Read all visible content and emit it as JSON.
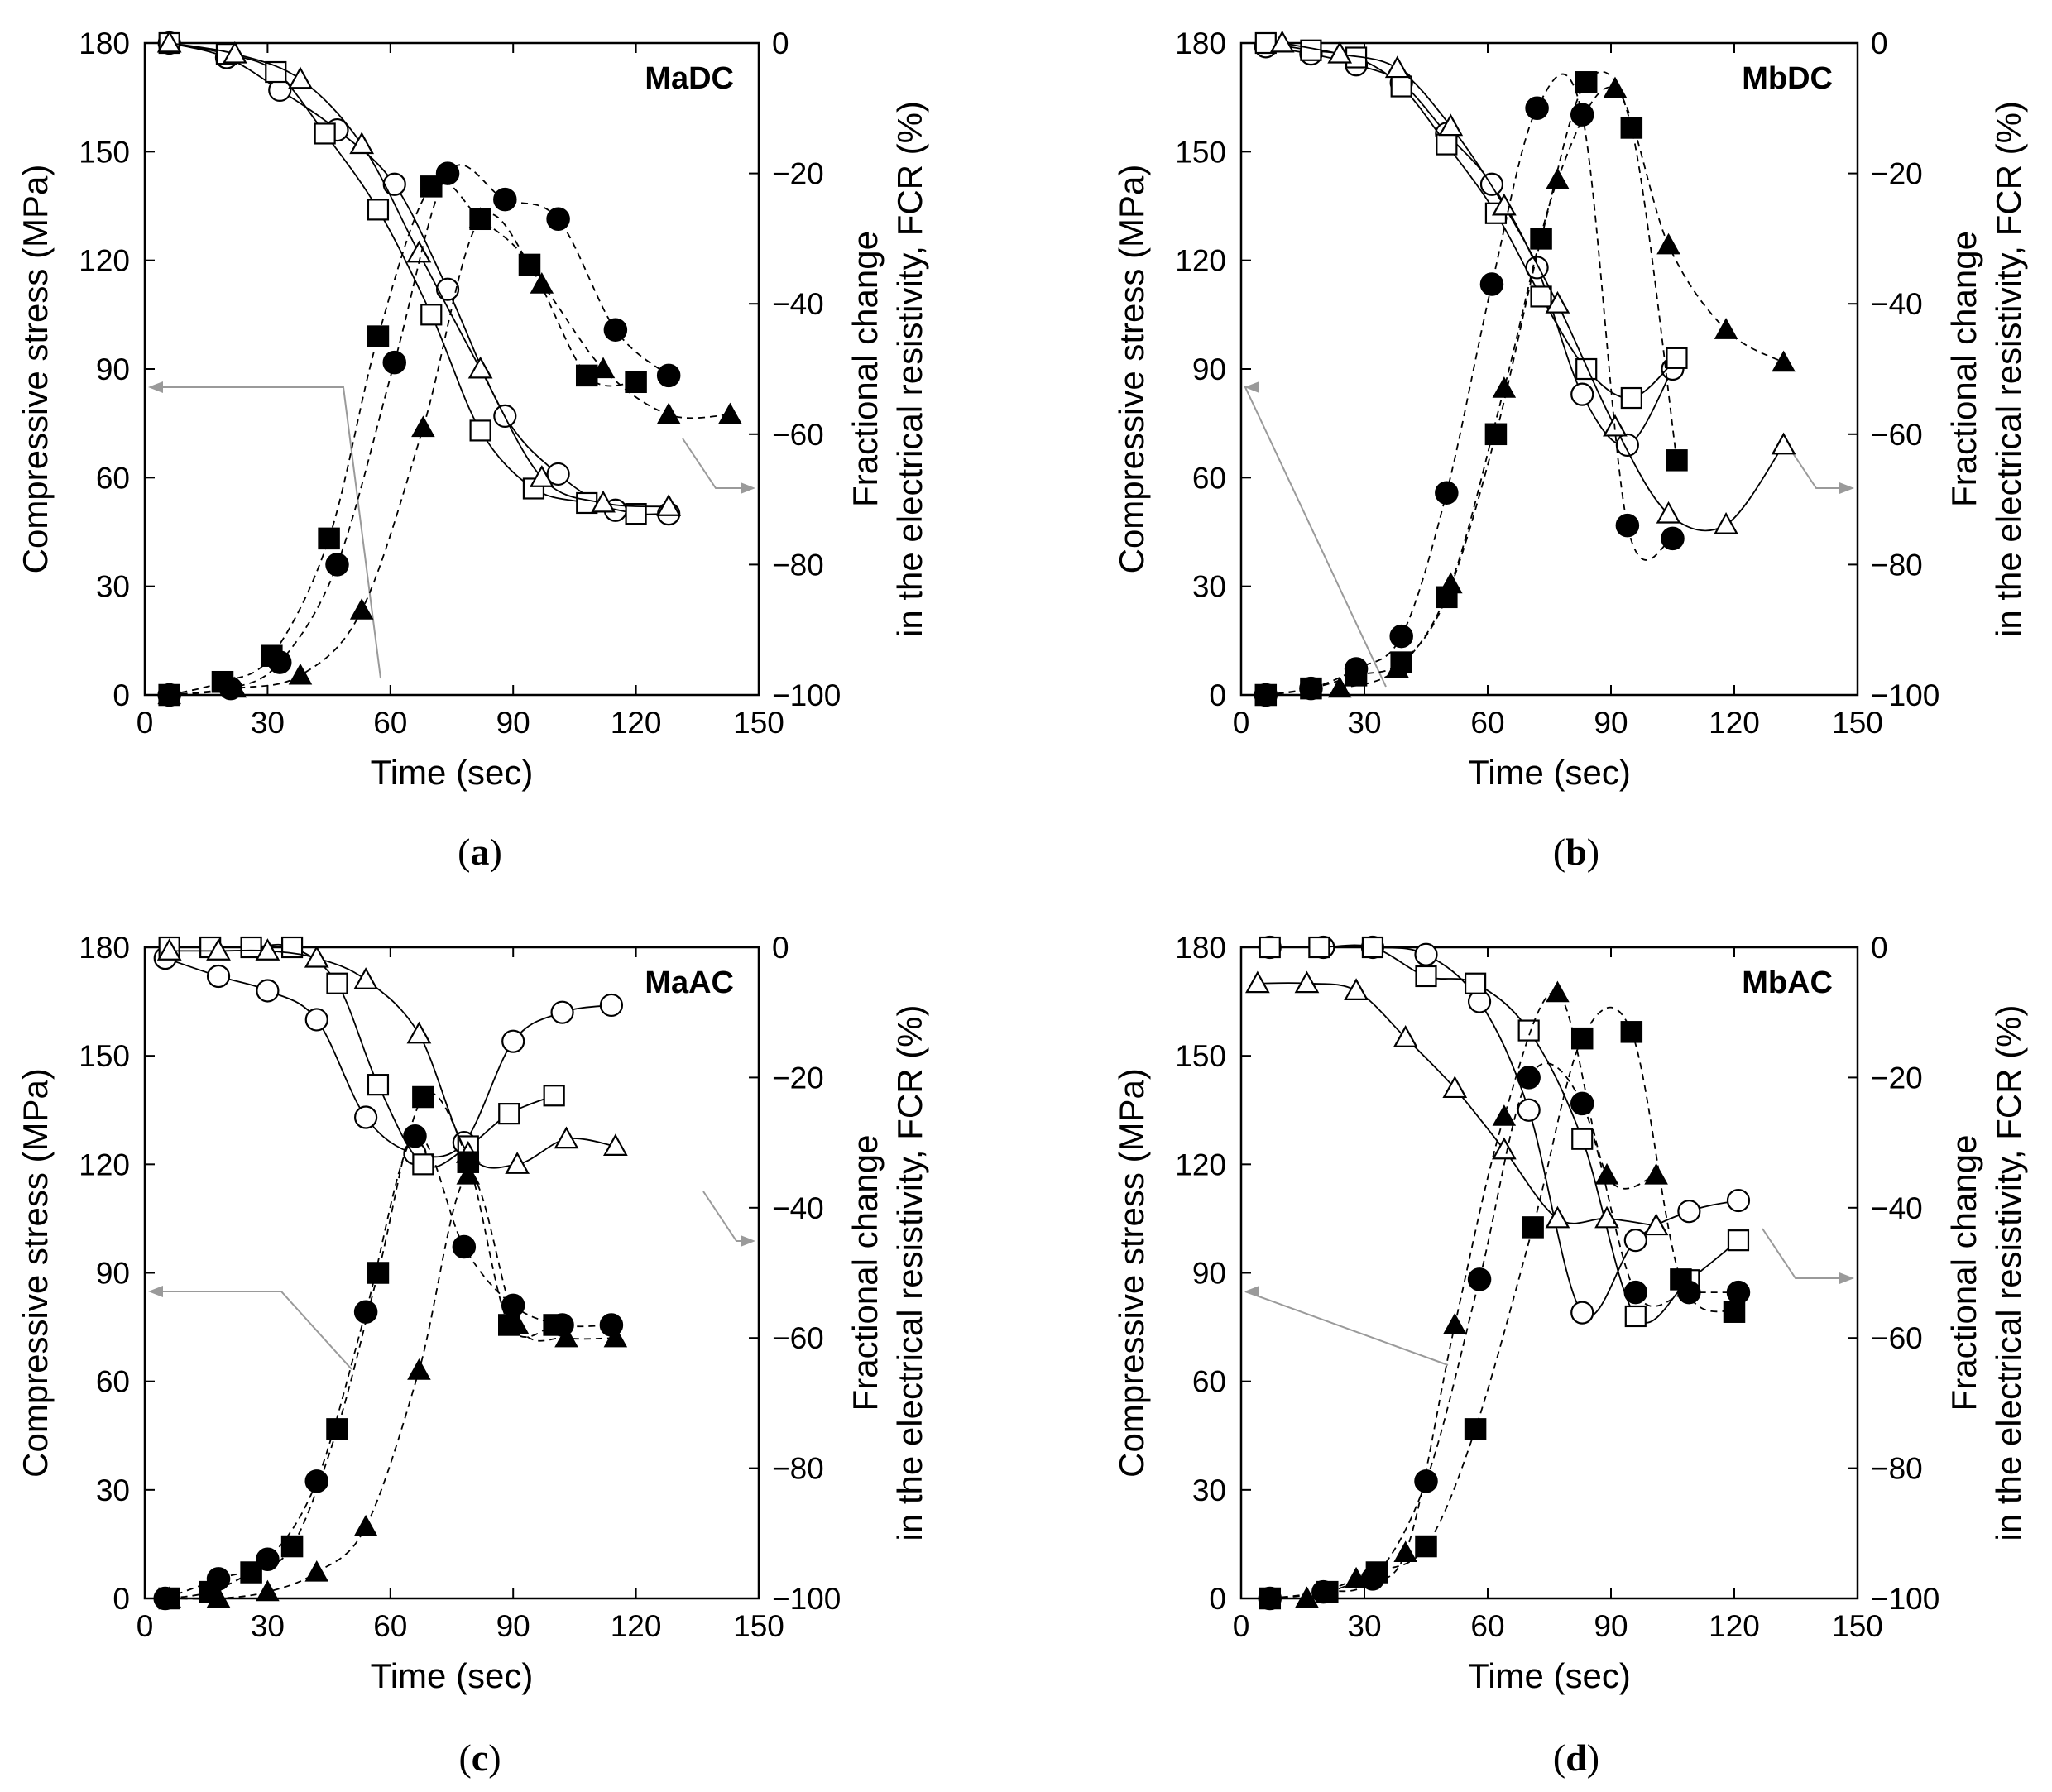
{
  "chart_data": [
    {
      "type": "scatter",
      "panel": "a",
      "caption": "a",
      "title": "MaDC",
      "xlabel": "Time (sec)",
      "ylabel": "Compressive stress (MPa)",
      "y2label_line1": "Fractional change",
      "y2label_line2": "in the electrical resistivity, FCR  (%)",
      "xlim": [
        0,
        150
      ],
      "ylim": [
        0,
        180
      ],
      "y2lim": [
        -100,
        0
      ],
      "xticks": [
        "0",
        "30",
        "60",
        "90",
        "120",
        "150"
      ],
      "yticks": [
        "0",
        "30",
        "60",
        "90",
        "120",
        "150",
        "180"
      ],
      "y2ticks": [
        "−100",
        "−80",
        "−60",
        "−40",
        "−20",
        "0"
      ],
      "stress_series": [
        {
          "name": "stress-circle",
          "marker": "open-circle",
          "x": [
            6,
            20,
            33,
            47,
            61,
            74,
            88,
            101,
            115,
            128
          ],
          "y": [
            180,
            176,
            167,
            156,
            141,
            112,
            77,
            61,
            51,
            50
          ]
        },
        {
          "name": "stress-square",
          "marker": "open-square",
          "x": [
            6,
            20,
            32,
            44,
            57,
            70,
            82,
            95,
            108,
            120
          ],
          "y": [
            180,
            177,
            172,
            155,
            134,
            105,
            73,
            57,
            53,
            50
          ]
        },
        {
          "name": "stress-triangle",
          "marker": "open-triangle",
          "x": [
            6,
            22,
            38,
            53,
            67,
            82,
            97,
            112,
            128
          ],
          "y": [
            180,
            177,
            170,
            152,
            122,
            90,
            60,
            53,
            52
          ]
        }
      ],
      "fcr_series": [
        {
          "name": "fcr-circle",
          "marker": "filled-circle",
          "x": [
            6,
            21,
            33,
            47,
            61,
            74,
            88,
            101,
            115,
            128
          ],
          "y": [
            -100,
            -99,
            -95,
            -80,
            -49,
            -20,
            -24,
            -27,
            -44,
            -51
          ]
        },
        {
          "name": "fcr-square",
          "marker": "filled-square",
          "x": [
            6,
            19,
            31,
            45,
            57,
            70,
            82,
            94,
            108,
            120
          ],
          "y": [
            -100,
            -98,
            -94,
            -76,
            -45,
            -22,
            -27,
            -34,
            -51,
            -52
          ]
        },
        {
          "name": "fcr-triangle",
          "marker": "filled-triangle",
          "x": [
            6,
            22,
            38,
            53,
            68,
            82,
            97,
            112,
            128,
            143
          ],
          "y": [
            -100,
            -99,
            -97,
            -87,
            -59,
            -27,
            -37,
            -50,
            -57,
            -57
          ]
        }
      ]
    },
    {
      "type": "scatter",
      "panel": "b",
      "caption": "b",
      "title": "MbDC",
      "xlabel": "Time (sec)",
      "ylabel": "Compressive stress (MPa)",
      "y2label_line1": "Fractional change",
      "y2label_line2": "in the electrical resistivity, FCR  (%)",
      "xlim": [
        0,
        150
      ],
      "ylim": [
        0,
        180
      ],
      "y2lim": [
        -100,
        0
      ],
      "xticks": [
        "0",
        "30",
        "60",
        "90",
        "120",
        "150"
      ],
      "yticks": [
        "0",
        "30",
        "60",
        "90",
        "120",
        "150",
        "180"
      ],
      "y2ticks": [
        "−100",
        "−80",
        "−60",
        "−40",
        "−20",
        "0"
      ],
      "stress_series": [
        {
          "name": "stress-circle",
          "marker": "open-circle",
          "x": [
            6,
            17,
            28,
            39,
            50,
            61,
            72,
            83,
            94,
            105
          ],
          "y": [
            179,
            177,
            174,
            169,
            155,
            141,
            118,
            83,
            69,
            90
          ]
        },
        {
          "name": "stress-square",
          "marker": "open-square",
          "x": [
            6,
            17,
            28,
            39,
            50,
            62,
            73,
            84,
            95,
            106
          ],
          "y": [
            180,
            178,
            176,
            168,
            152,
            133,
            110,
            90,
            82,
            93
          ]
        },
        {
          "name": "stress-triangle",
          "marker": "open-triangle",
          "x": [
            10,
            24,
            38,
            51,
            64,
            77,
            91,
            104,
            118,
            132
          ],
          "y": [
            180,
            177,
            173,
            157,
            135,
            108,
            74,
            50,
            47,
            69
          ]
        }
      ],
      "fcr_series": [
        {
          "name": "fcr-circle",
          "marker": "filled-circle",
          "x": [
            6,
            17,
            28,
            39,
            50,
            61,
            72,
            83,
            94,
            105
          ],
          "y": [
            -100,
            -99,
            -96,
            -91,
            -69,
            -37,
            -10,
            -11,
            -74,
            -76
          ]
        },
        {
          "name": "fcr-square",
          "marker": "filled-square",
          "x": [
            6,
            17,
            28,
            39,
            50,
            62,
            73,
            84,
            95,
            106
          ],
          "y": [
            -100,
            -99,
            -97,
            -95,
            -85,
            -60,
            -30,
            -6,
            -13,
            -64
          ]
        },
        {
          "name": "fcr-triangle",
          "marker": "filled-triangle",
          "x": [
            24,
            38,
            51,
            64,
            77,
            91,
            104,
            118,
            132
          ],
          "y": [
            -99,
            -96,
            -83,
            -53,
            -21,
            -7,
            -31,
            -44,
            -49
          ]
        }
      ]
    },
    {
      "type": "scatter",
      "panel": "c",
      "caption": "c",
      "title": "MaAC",
      "xlabel": "Time (sec)",
      "ylabel": "Compressive stress (MPa)",
      "y2label_line1": "Fractional change",
      "y2label_line2": "in the electrical resistivity, FCR  (%)",
      "xlim": [
        0,
        150
      ],
      "ylim": [
        0,
        180
      ],
      "y2lim": [
        -100,
        0
      ],
      "xticks": [
        "0",
        "30",
        "60",
        "90",
        "120",
        "150"
      ],
      "yticks": [
        "0",
        "30",
        "60",
        "90",
        "120",
        "150",
        "180"
      ],
      "y2ticks": [
        "−100",
        "−80",
        "−60",
        "−40",
        "−20",
        "0"
      ],
      "stress_series": [
        {
          "name": "stress-circle",
          "marker": "open-circle",
          "x": [
            5,
            18,
            30,
            42,
            54,
            66,
            78,
            90,
            102,
            114
          ],
          "y": [
            177,
            172,
            168,
            160,
            133,
            123,
            126,
            154,
            162,
            164
          ]
        },
        {
          "name": "stress-square",
          "marker": "open-square",
          "x": [
            6,
            16,
            26,
            36,
            47,
            57,
            68,
            79,
            89,
            100
          ],
          "y": [
            180,
            180,
            180,
            180,
            170,
            142,
            120,
            125,
            134,
            139
          ]
        },
        {
          "name": "stress-triangle",
          "marker": "open-triangle",
          "x": [
            6,
            18,
            30,
            42,
            54,
            67,
            79,
            91,
            103,
            115
          ],
          "y": [
            179,
            179,
            179,
            177,
            171,
            156,
            123,
            120,
            127,
            125
          ]
        }
      ],
      "fcr_series": [
        {
          "name": "fcr-circle",
          "marker": "filled-circle",
          "x": [
            5,
            18,
            30,
            42,
            54,
            66,
            78,
            90,
            102,
            114
          ],
          "y": [
            -100,
            -97,
            -94,
            -82,
            -56,
            -29,
            -46,
            -55,
            -58,
            -58
          ]
        },
        {
          "name": "fcr-square",
          "marker": "filled-square",
          "x": [
            6,
            16,
            26,
            36,
            47,
            57,
            68,
            79,
            89,
            100
          ],
          "y": [
            -100,
            -99,
            -96,
            -92,
            -74,
            -50,
            -23,
            -33,
            -58,
            -58
          ]
        },
        {
          "name": "fcr-triangle",
          "marker": "filled-triangle",
          "x": [
            6,
            18,
            30,
            42,
            54,
            67,
            79,
            91,
            103,
            115
          ],
          "y": [
            -100,
            -100,
            -99,
            -96,
            -89,
            -65,
            -35,
            -58,
            -60,
            -60
          ]
        }
      ]
    },
    {
      "type": "scatter",
      "panel": "d",
      "caption": "d",
      "title": "MbAC",
      "xlabel": "Time (sec)",
      "ylabel": "Compressive stress (MPa)",
      "y2label_line1": "Fractional change",
      "y2label_line2": "in the electrical resistivity, FCR  (%)",
      "xlim": [
        0,
        150
      ],
      "ylim": [
        0,
        180
      ],
      "y2lim": [
        -100,
        0
      ],
      "xticks": [
        "0",
        "30",
        "60",
        "90",
        "120",
        "150"
      ],
      "yticks": [
        "0",
        "30",
        "60",
        "90",
        "120",
        "150",
        "180"
      ],
      "y2ticks": [
        "−100",
        "−80",
        "−60",
        "−40",
        "−20",
        "0"
      ],
      "stress_series": [
        {
          "name": "stress-circle",
          "marker": "open-circle",
          "x": [
            7,
            20,
            32,
            45,
            58,
            70,
            83,
            96,
            109,
            121
          ],
          "y": [
            180,
            180,
            180,
            178,
            165,
            135,
            79,
            99,
            107,
            110
          ]
        },
        {
          "name": "stress-square",
          "marker": "open-square",
          "x": [
            7,
            19,
            32,
            45,
            57,
            70,
            83,
            96,
            109,
            121
          ],
          "y": [
            180,
            180,
            180,
            172,
            170,
            157,
            127,
            78,
            88,
            99
          ]
        },
        {
          "name": "stress-triangle",
          "marker": "open-triangle",
          "x": [
            4,
            16,
            28,
            40,
            52,
            64,
            77,
            89,
            101
          ],
          "y": [
            170,
            170,
            168,
            155,
            141,
            124,
            105,
            105,
            103
          ]
        }
      ],
      "fcr_series": [
        {
          "name": "fcr-circle",
          "marker": "filled-circle",
          "x": [
            7,
            20,
            32,
            45,
            58,
            70,
            83,
            96,
            109,
            121
          ],
          "y": [
            -100,
            -99,
            -97,
            -82,
            -51,
            -20,
            -24,
            -53,
            -53,
            -53
          ]
        },
        {
          "name": "fcr-square",
          "marker": "filled-square",
          "x": [
            7,
            21,
            33,
            45,
            57,
            71,
            83,
            95,
            107,
            120
          ],
          "y": [
            -100,
            -99,
            -96,
            -92,
            -74,
            -43,
            -14,
            -13,
            -51,
            -56
          ]
        },
        {
          "name": "fcr-triangle",
          "marker": "filled-triangle",
          "x": [
            16,
            28,
            40,
            52,
            64,
            77,
            89,
            101
          ],
          "y": [
            -100,
            -97,
            -93,
            -58,
            -26,
            -7,
            -35,
            -35
          ]
        }
      ]
    }
  ]
}
